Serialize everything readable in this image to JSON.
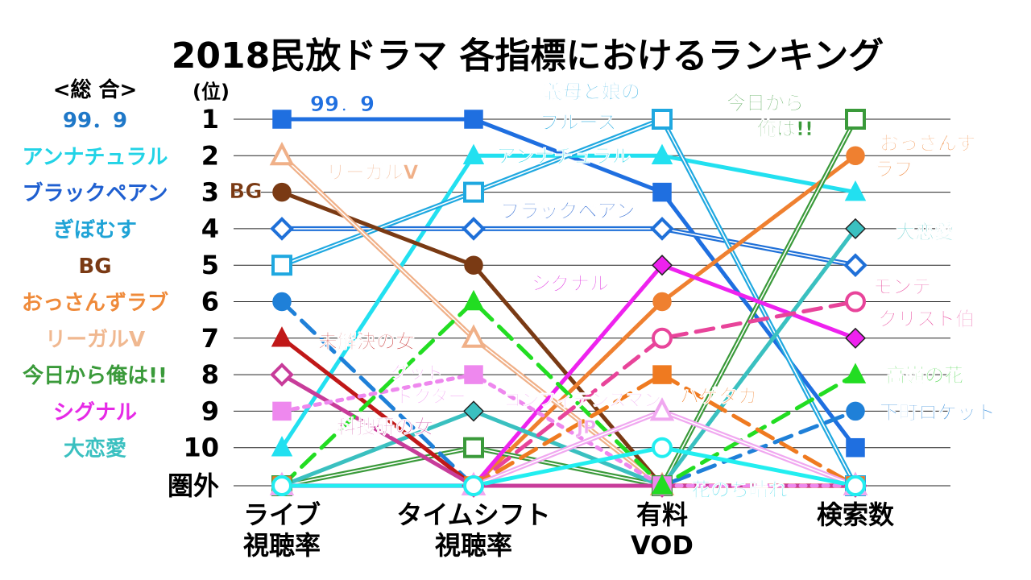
{
  "chart_data": {
    "type": "line",
    "title": "2018民放ドラマ 各指標におけるランキング",
    "rank_header": "(位)",
    "overall_header": "<総 合>",
    "categories": [
      "ライブ\n視聴率",
      "タイムシフト\n視聴率",
      "有料\nVOD",
      "検索数"
    ],
    "y_ticks": [
      "1",
      "2",
      "3",
      "4",
      "5",
      "6",
      "7",
      "8",
      "9",
      "10",
      "圏外"
    ],
    "y_range": [
      1,
      11
    ],
    "out_of_range_label": "圏外",
    "overall_ranking": [
      {
        "rank": 1,
        "name": "99．9",
        "color": "#1f78c8"
      },
      {
        "rank": 2,
        "name": "アンナチュラル",
        "color": "#22d3e6"
      },
      {
        "rank": 3,
        "name": "ブラックペアン",
        "color": "#1f5fd0"
      },
      {
        "rank": 4,
        "name": "ぎぼむす",
        "color": "#1fa3d6"
      },
      {
        "rank": 5,
        "name": "BG",
        "color": "#7a3a14"
      },
      {
        "rank": 6,
        "name": "おっさんずラブ",
        "color": "#ef8a3a"
      },
      {
        "rank": 7,
        "name": "リーガルV",
        "color": "#f0b890"
      },
      {
        "rank": 8,
        "name": "今日から俺は!!",
        "color": "#3a9a3a"
      },
      {
        "rank": 9,
        "name": "シグナル",
        "color": "#e62ae6"
      },
      {
        "rank": 10,
        "name": "大恋愛",
        "color": "#3ac0c0"
      }
    ],
    "series": [
      {
        "name": "99．9",
        "color": "#1f6fe0",
        "marker": "square",
        "style": "solid",
        "values": [
          1,
          1,
          3,
          10
        ]
      },
      {
        "name": "アンナチュラル",
        "color": "#22e0f0",
        "marker": "triangle",
        "style": "solid",
        "values": [
          10,
          2,
          2,
          3
        ]
      },
      {
        "name": "ブラックペアン",
        "color": "#1f70d8",
        "marker": "diamond-open",
        "style": "double",
        "values": [
          4,
          4,
          4,
          5
        ]
      },
      {
        "name": "義母と娘のブルース",
        "color": "#1fa8e0",
        "marker": "square-open",
        "style": "double",
        "values": [
          5,
          3,
          1,
          11
        ]
      },
      {
        "name": "BG",
        "color": "#7a3a14",
        "marker": "circle",
        "style": "solid",
        "values": [
          3,
          5,
          11,
          11
        ]
      },
      {
        "name": "おっさんずラブ",
        "color": "#ef8030",
        "marker": "circle",
        "style": "solid",
        "values": [
          11,
          11,
          6,
          2
        ]
      },
      {
        "name": "リーガルV",
        "color": "#f0b088",
        "marker": "triangle-open",
        "style": "double",
        "values": [
          2,
          7,
          11,
          11
        ]
      },
      {
        "name": "今日から俺は!!",
        "color": "#3a9a3a",
        "marker": "square-open",
        "style": "double",
        "values": [
          11,
          10,
          11,
          1
        ]
      },
      {
        "name": "シグナル",
        "color": "#ee22ee",
        "marker": "diamond",
        "style": "solid",
        "values": [
          11,
          11,
          5,
          7
        ]
      },
      {
        "name": "大恋愛",
        "color": "#3ac0c0",
        "marker": "diamond",
        "style": "solid",
        "values": [
          11,
          9,
          11,
          4
        ]
      },
      {
        "name": "下町ロケット",
        "color": "#1f80d8",
        "marker": "circle",
        "style": "dashed",
        "values": [
          6,
          11,
          11,
          9
        ]
      },
      {
        "name": "モンテ・クリスト伯",
        "color": "#e8449a",
        "marker": "circle-open",
        "style": "dashed",
        "values": [
          11,
          11,
          7,
          6
        ]
      },
      {
        "name": "未解決の女",
        "color": "#c01818",
        "marker": "triangle",
        "style": "solid",
        "values": [
          7,
          11,
          11,
          11
        ]
      },
      {
        "name": "科捜研の女",
        "color": "#c83c9a",
        "marker": "diamond-open",
        "style": "solid",
        "values": [
          8,
          11,
          11,
          11
        ]
      },
      {
        "name": "グッド・ドクター",
        "color": "#ee88ee",
        "marker": "square",
        "style": "dotted",
        "values": [
          9,
          8,
          11,
          11
        ]
      },
      {
        "name": "高嶺の花",
        "color": "#22dd22",
        "marker": "triangle",
        "style": "dashed",
        "values": [
          11,
          6,
          11,
          8
        ]
      },
      {
        "name": "ハゲタカ",
        "color": "#ef7a20",
        "marker": "square",
        "style": "dashed",
        "values": [
          11,
          11,
          8,
          11
        ]
      },
      {
        "name": "コンフィデンスマンJP",
        "color": "#f0a8f0",
        "marker": "triangle-open",
        "style": "double",
        "values": [
          11,
          11,
          9,
          11
        ]
      },
      {
        "name": "花のち晴れ",
        "color": "#22eef0",
        "marker": "circle-open",
        "style": "solid",
        "values": [
          11,
          11,
          10,
          11
        ]
      }
    ],
    "annotations": [
      {
        "text": "99．9",
        "color": "#1f6fe0"
      },
      {
        "text": "リーガルV",
        "color": "#f0b088"
      },
      {
        "text": "BG",
        "color": "#7a3a14"
      },
      {
        "text": "未解決の女",
        "color": "#c01818"
      },
      {
        "text": "科捜研の女",
        "color": "#c83c9a"
      },
      {
        "text": "グッド",
        "color": "#ee88ee"
      },
      {
        "text": "ドクター",
        "color": "#ee88ee"
      },
      {
        "text": "義母と娘の",
        "color": "#1fa8e0"
      },
      {
        "text": "ブルース",
        "color": "#1fa8e0"
      },
      {
        "text": "アンナチュラル",
        "color": "#22d3e6"
      },
      {
        "text": "ブラックペアン",
        "color": "#1f5fd0"
      },
      {
        "text": "シグナル",
        "color": "#dd22dd"
      },
      {
        "text": "コンフィデンスマン",
        "color": "#f0a8f0"
      },
      {
        "text": "JP",
        "color": "#f0a8f0"
      },
      {
        "text": "ハゲタカ",
        "color": "#ef7a20"
      },
      {
        "text": "花のち晴れ",
        "color": "#22d3e6"
      },
      {
        "text": "今日から",
        "color": "#3a9a3a"
      },
      {
        "text": "俺は!!",
        "color": "#3a9a3a"
      },
      {
        "text": "おっさんず",
        "color": "#ef8030"
      },
      {
        "text": "ラブ",
        "color": "#ef8030"
      },
      {
        "text": "大恋愛",
        "color": "#3ac0c0"
      },
      {
        "text": "モンテ",
        "color": "#e8449a"
      },
      {
        "text": "クリスト伯",
        "color": "#e8449a"
      },
      {
        "text": "高嶺の花",
        "color": "#22cc22"
      },
      {
        "text": "下町ロケット",
        "color": "#1f80d8"
      }
    ],
    "grid": true
  }
}
